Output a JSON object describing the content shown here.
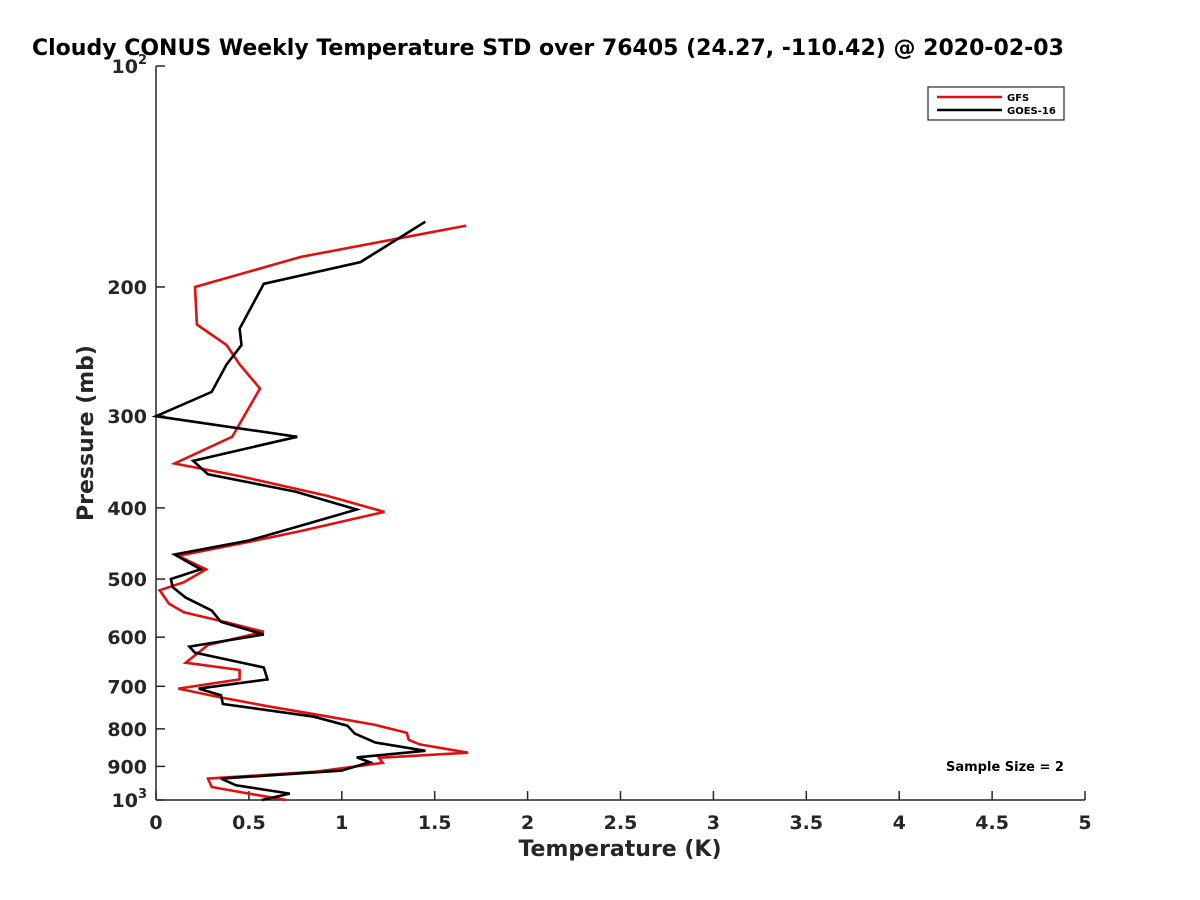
{
  "chart_data": {
    "type": "line",
    "title": "Cloudy CONUS Weekly Temperature STD over 76405 (24.27, -110.42) @ 2020-02-03",
    "xlabel": "Temperature (K)",
    "ylabel": "Pressure (mb)",
    "xlim": [
      0,
      5
    ],
    "ylim": [
      100,
      1000
    ],
    "y_scale": "log",
    "y_reversed": true,
    "grid": false,
    "legend_placement": "top-right",
    "x_ticks": [
      {
        "value": 0,
        "label": "0"
      },
      {
        "value": 0.5,
        "label": "0.5"
      },
      {
        "value": 1,
        "label": "1"
      },
      {
        "value": 1.5,
        "label": "1.5"
      },
      {
        "value": 2,
        "label": "2"
      },
      {
        "value": 2.5,
        "label": "2.5"
      },
      {
        "value": 3,
        "label": "3"
      },
      {
        "value": 3.5,
        "label": "3.5"
      },
      {
        "value": 4,
        "label": "4"
      },
      {
        "value": 4.5,
        "label": "4.5"
      },
      {
        "value": 5,
        "label": "5"
      }
    ],
    "y_ticks": [
      {
        "value": 100,
        "base": "10",
        "exp": "2"
      },
      {
        "value": 200,
        "base": "200",
        "exp": ""
      },
      {
        "value": 300,
        "base": "300",
        "exp": ""
      },
      {
        "value": 400,
        "base": "400",
        "exp": ""
      },
      {
        "value": 500,
        "base": "500",
        "exp": ""
      },
      {
        "value": 600,
        "base": "600",
        "exp": ""
      },
      {
        "value": 700,
        "base": "700",
        "exp": ""
      },
      {
        "value": 800,
        "base": "800",
        "exp": ""
      },
      {
        "value": 900,
        "base": "900",
        "exp": ""
      },
      {
        "value": 1000,
        "base": "10",
        "exp": "3"
      }
    ],
    "annotation": "Sample Size = 2",
    "series": [
      {
        "name": "GFS",
        "color": "#e01010",
        "points": [
          [
            1.67,
            165
          ],
          [
            0.78,
            182
          ],
          [
            0.21,
            200
          ],
          [
            0.22,
            225
          ],
          [
            0.38,
            240
          ],
          [
            0.45,
            255
          ],
          [
            0.56,
            275
          ],
          [
            0.41,
            320
          ],
          [
            0.1,
            348
          ],
          [
            0.45,
            362
          ],
          [
            0.92,
            385
          ],
          [
            1.23,
            405
          ],
          [
            0.78,
            430
          ],
          [
            0.5,
            445
          ],
          [
            0.12,
            465
          ],
          [
            0.27,
            485
          ],
          [
            0.15,
            505
          ],
          [
            0.02,
            518
          ],
          [
            0.07,
            540
          ],
          [
            0.15,
            555
          ],
          [
            0.37,
            572
          ],
          [
            0.58,
            590
          ],
          [
            0.28,
            615
          ],
          [
            0.16,
            650
          ],
          [
            0.45,
            665
          ],
          [
            0.45,
            685
          ],
          [
            0.12,
            705
          ],
          [
            0.35,
            725
          ],
          [
            0.6,
            745
          ],
          [
            0.93,
            770
          ],
          [
            1.18,
            790
          ],
          [
            1.35,
            810
          ],
          [
            1.36,
            828
          ],
          [
            1.42,
            840
          ],
          [
            1.68,
            862
          ],
          [
            1.2,
            876
          ],
          [
            1.22,
            890
          ],
          [
            0.86,
            915
          ],
          [
            0.28,
            935
          ],
          [
            0.3,
            960
          ],
          [
            0.55,
            985
          ],
          [
            0.7,
            1000
          ]
        ]
      },
      {
        "name": "GOES-16",
        "color": "#000000",
        "points": [
          [
            1.45,
            163
          ],
          [
            1.1,
            185
          ],
          [
            0.58,
            198
          ],
          [
            0.45,
            228
          ],
          [
            0.46,
            240
          ],
          [
            0.38,
            255
          ],
          [
            0.3,
            278
          ],
          [
            0.0,
            300
          ],
          [
            0.76,
            320
          ],
          [
            0.2,
            345
          ],
          [
            0.28,
            360
          ],
          [
            0.75,
            380
          ],
          [
            1.08,
            402
          ],
          [
            0.82,
            420
          ],
          [
            0.5,
            443
          ],
          [
            0.1,
            463
          ],
          [
            0.24,
            485
          ],
          [
            0.08,
            500
          ],
          [
            0.09,
            513
          ],
          [
            0.16,
            530
          ],
          [
            0.3,
            552
          ],
          [
            0.35,
            572
          ],
          [
            0.58,
            595
          ],
          [
            0.18,
            618
          ],
          [
            0.21,
            630
          ],
          [
            0.58,
            660
          ],
          [
            0.6,
            685
          ],
          [
            0.23,
            705
          ],
          [
            0.35,
            720
          ],
          [
            0.36,
            740
          ],
          [
            0.85,
            770
          ],
          [
            1.03,
            792
          ],
          [
            1.07,
            812
          ],
          [
            1.18,
            835
          ],
          [
            1.45,
            857
          ],
          [
            1.08,
            875
          ],
          [
            1.15,
            888
          ],
          [
            1.0,
            912
          ],
          [
            0.35,
            935
          ],
          [
            0.43,
            955
          ],
          [
            0.72,
            980
          ],
          [
            0.57,
            1000
          ]
        ]
      }
    ]
  }
}
